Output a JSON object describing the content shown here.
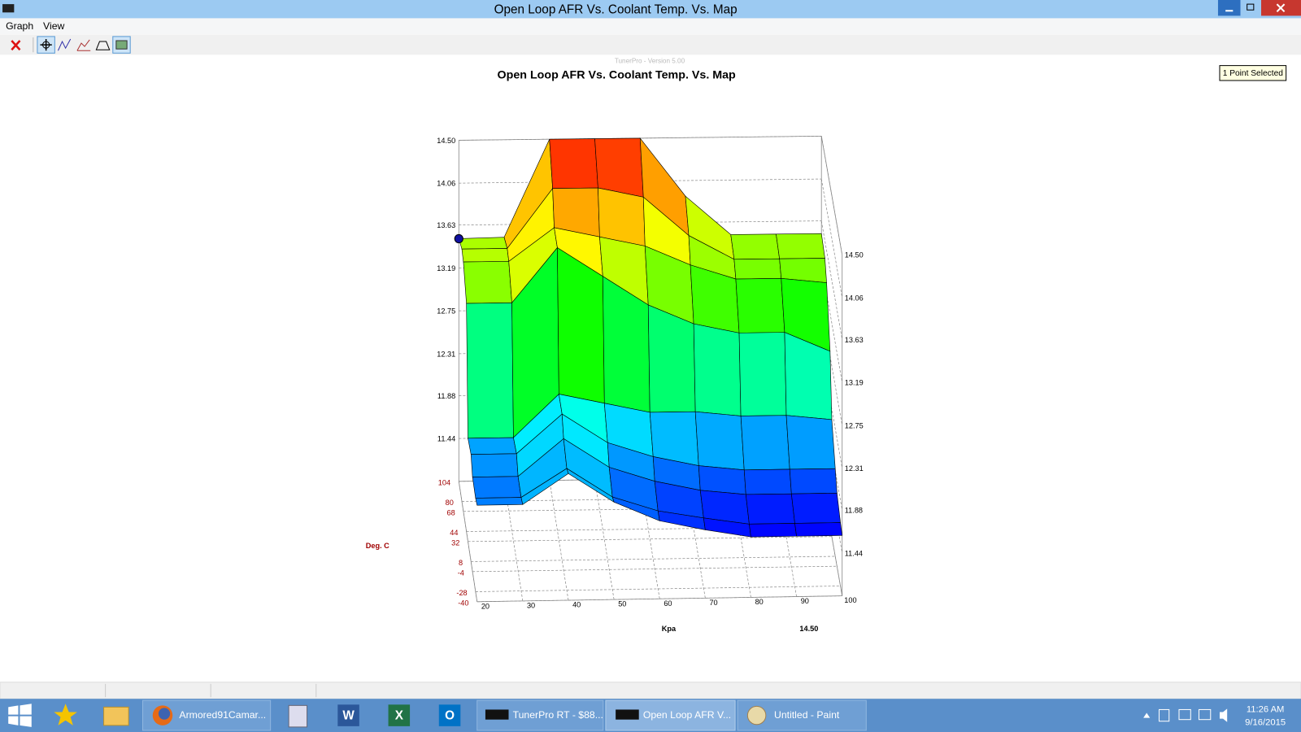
{
  "window": {
    "title": "Open Loop AFR Vs. Coolant Temp. Vs. Map"
  },
  "menu": [
    "Graph",
    "View"
  ],
  "chart_data": {
    "type": "surface",
    "title": "Open Loop AFR Vs. Coolant Temp. Vs. Map",
    "subtitle": "TunerPro - Version 5.00",
    "selection_label": "1 Point Selected",
    "x_label": "Kpa",
    "y_label": "Deg. C",
    "x": [
      20,
      30,
      40,
      50,
      60,
      70,
      80,
      90,
      100
    ],
    "y": [
      -40,
      -28,
      -4,
      8,
      32,
      44,
      68,
      80,
      104
    ],
    "z": [
      [
        11.99,
        11.99,
        12.3,
        12.0,
        11.8,
        11.7,
        11.62,
        11.62,
        11.62
      ],
      [
        11.96,
        11.96,
        12.25,
        11.95,
        11.8,
        11.72,
        11.65,
        11.65,
        11.65
      ],
      [
        11.97,
        11.97,
        12.35,
        12.05,
        11.9,
        11.8,
        11.75,
        11.75,
        11.75
      ],
      [
        12.1,
        12.1,
        12.5,
        12.2,
        12.05,
        11.95,
        11.9,
        11.9,
        11.9
      ],
      [
        12.06,
        12.06,
        12.5,
        12.4,
        12.3,
        12.3,
        12.25,
        12.25,
        12.2
      ],
      [
        13.34,
        13.34,
        13.9,
        13.6,
        13.3,
        13.1,
        13.0,
        13.0,
        12.8
      ],
      [
        13.56,
        13.56,
        13.9,
        13.8,
        13.7,
        13.5,
        13.35,
        13.35,
        13.3
      ],
      [
        13.59,
        13.59,
        14.2,
        14.2,
        14.1,
        13.7,
        13.45,
        13.45,
        13.45
      ],
      [
        13.49,
        13.5,
        14.5,
        14.5,
        14.5,
        13.9,
        13.5,
        13.5,
        13.5
      ]
    ],
    "xlim": [
      20,
      100
    ],
    "ylim": [
      -40,
      104
    ],
    "zlim": [
      11.0,
      14.5
    ],
    "xticks": [
      20,
      30,
      40,
      50,
      60,
      70,
      80,
      90,
      100
    ],
    "yticks": [
      -40,
      -28,
      -4,
      8,
      32,
      44,
      68,
      80,
      104
    ],
    "zticks": [
      11.44,
      11.88,
      12.31,
      12.75,
      13.19,
      13.63,
      14.06,
      {
        "value": 14.5,
        "label": "14.50"
      }
    ],
    "grid": true,
    "selected": {
      "x": 20,
      "y": 104,
      "label": "14.50"
    }
  },
  "taskbar": {
    "items": [
      "Armored91Camar...",
      "TunerPro RT - $88...",
      "Open Loop AFR V...",
      "Untitled - Paint"
    ],
    "time": "11:26 AM",
    "date": "9/16/2015"
  }
}
